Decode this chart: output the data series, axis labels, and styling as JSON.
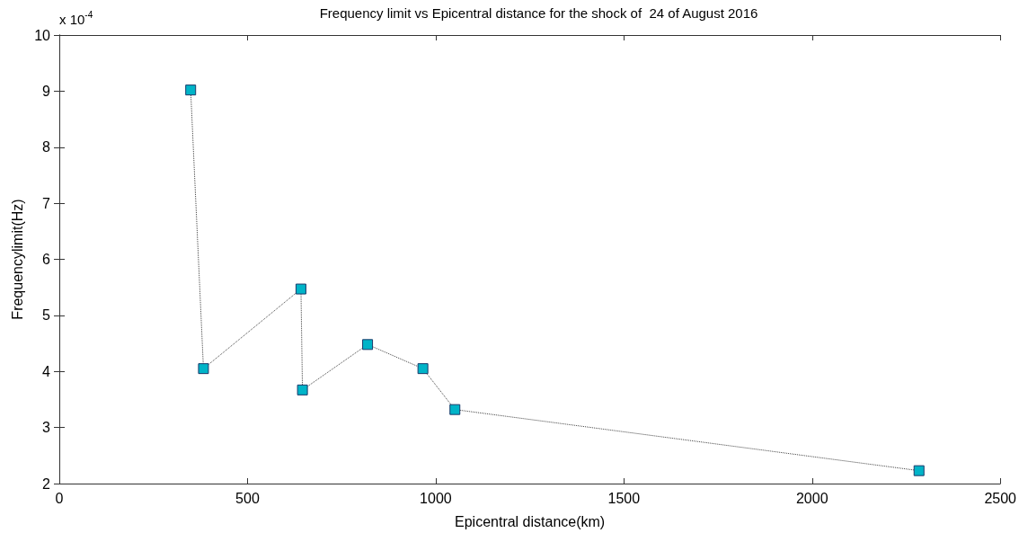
{
  "chart_data": {
    "type": "line",
    "title": "Frequency limit vs Epicentral distance for the shock of  24 of August 2016",
    "xlabel": "Epicentral distance(km)",
    "ylabel": "Frequencylimit(Hz)",
    "annotations": [
      "x 10$^{-4}$"
    ],
    "x": [
      349,
      383,
      642,
      646,
      819,
      966,
      1051,
      2284
    ],
    "series": [
      {
        "color": "#00b4c8",
        "values": [
          9.02,
          4.05,
          5.47,
          3.67,
          4.48,
          4.05,
          3.32,
          2.23
        ]
      }
    ],
    "xlim": [
      0,
      2500
    ],
    "xticks": [
      0,
      500,
      1000,
      1500,
      2000,
      2500
    ],
    "ylim": [
      2,
      10
    ],
    "yticks": [
      2,
      3,
      4,
      5,
      6,
      7,
      8,
      9,
      10
    ],
    "grid": false,
    "marker": "square",
    "line_style": "dotted"
  }
}
